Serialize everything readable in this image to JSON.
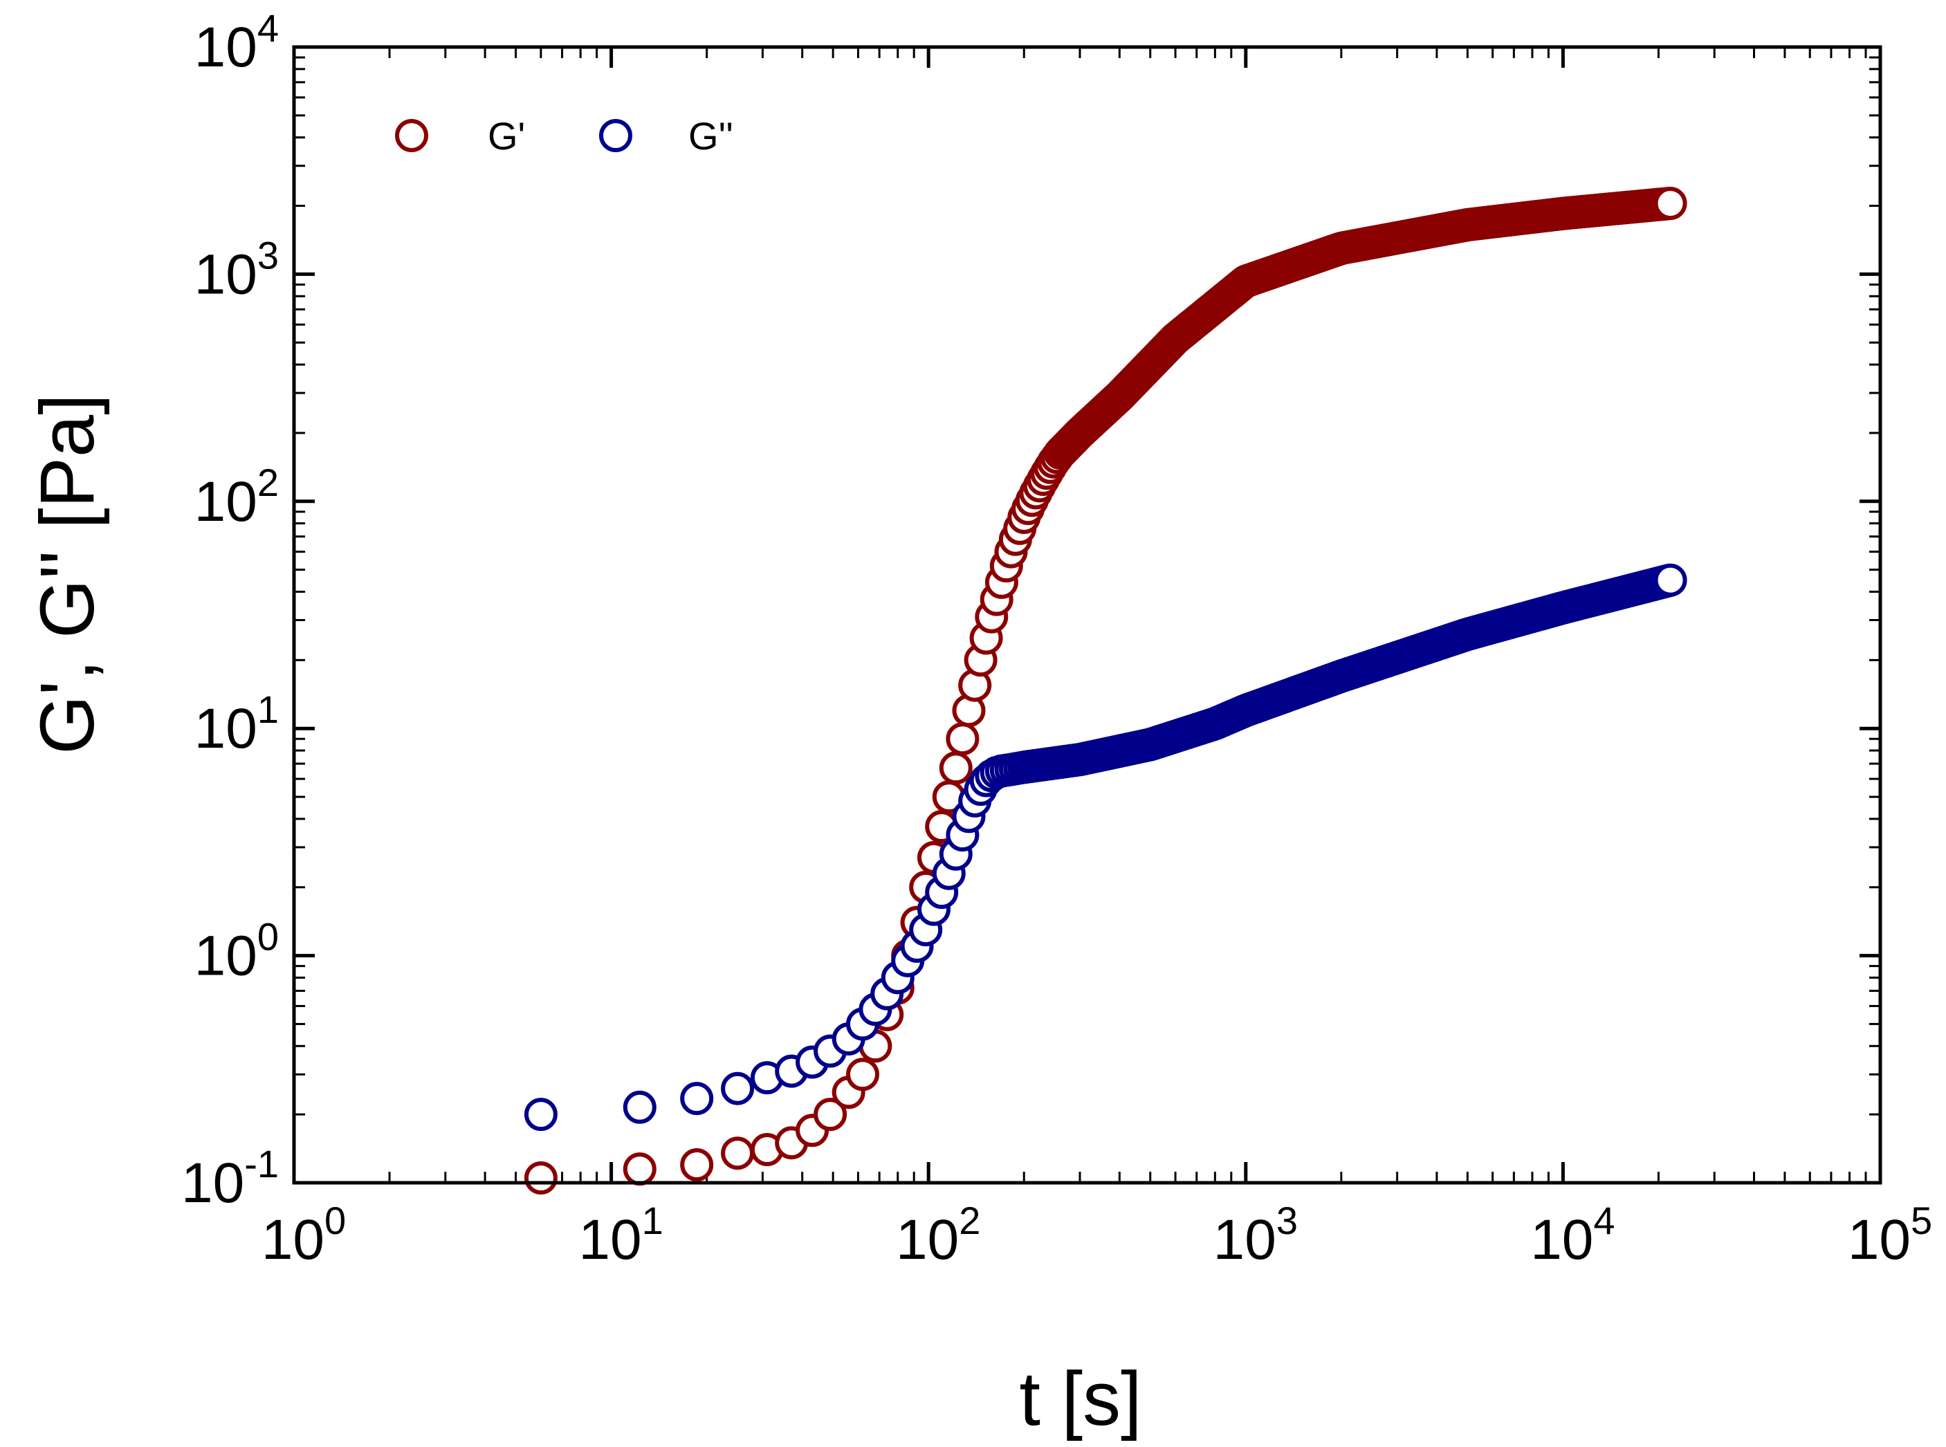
{
  "chart_data": {
    "type": "scatter",
    "title": "",
    "xlabel": "t [s]",
    "ylabel": "G', G'' [Pa]",
    "xscale": "log",
    "yscale": "log",
    "xlim": [
      1,
      100000
    ],
    "ylim": [
      0.1,
      10000
    ],
    "x_ticks": [
      {
        "base": "10",
        "exp": "0"
      },
      {
        "base": "10",
        "exp": "1"
      },
      {
        "base": "10",
        "exp": "2"
      },
      {
        "base": "10",
        "exp": "3"
      },
      {
        "base": "10",
        "exp": "4"
      },
      {
        "base": "10",
        "exp": "5"
      }
    ],
    "y_ticks": [
      {
        "base": "10",
        "exp": "-1"
      },
      {
        "base": "10",
        "exp": "0"
      },
      {
        "base": "10",
        "exp": "1"
      },
      {
        "base": "10",
        "exp": "2"
      },
      {
        "base": "10",
        "exp": "3"
      },
      {
        "base": "10",
        "exp": "4"
      }
    ],
    "grid": false,
    "legend_position": "top-left",
    "marker": "open-circle",
    "series": [
      {
        "name": "G'",
        "color": "#8B0000",
        "anchors": {
          "x": [
            6,
            12.3,
            18.6,
            25,
            31,
            37,
            43,
            49,
            56,
            62,
            68,
            74,
            80,
            86,
            92,
            98,
            104,
            110,
            116,
            122,
            128,
            134,
            140,
            146,
            152,
            158,
            164,
            170,
            176,
            182,
            188,
            194,
            200,
            206,
            212,
            218,
            224,
            230,
            236,
            242,
            248,
            254,
            260,
            300,
            400,
            600,
            1000,
            2000,
            5000,
            10000,
            21800
          ],
          "y": [
            0.105,
            0.115,
            0.12,
            0.135,
            0.14,
            0.15,
            0.17,
            0.2,
            0.25,
            0.3,
            0.4,
            0.55,
            0.72,
            1.0,
            1.4,
            2.0,
            2.7,
            3.7,
            5.0,
            6.7,
            9.0,
            12,
            15.5,
            20,
            25,
            31,
            37,
            44,
            52,
            60,
            68,
            76,
            85,
            93,
            101,
            109,
            117,
            125,
            133,
            141,
            149,
            156,
            163,
            200,
            290,
            520,
            930,
            1300,
            1650,
            1850,
            2050
          ]
        },
        "tail_start": 260,
        "tail_end": 21800,
        "tail_points": 700
      },
      {
        "name": "G''",
        "color": "#00008B",
        "anchors": {
          "x": [
            6,
            12.3,
            18.6,
            25,
            31,
            37,
            43,
            49,
            56,
            62,
            68,
            74,
            80,
            86,
            92,
            98,
            104,
            110,
            116,
            122,
            128,
            134,
            140,
            146,
            152,
            158,
            164,
            170,
            176,
            182,
            188,
            194,
            200,
            300,
            500,
            800,
            1000,
            2000,
            5000,
            10000,
            21800
          ],
          "y": [
            0.2,
            0.215,
            0.235,
            0.26,
            0.29,
            0.31,
            0.34,
            0.38,
            0.43,
            0.5,
            0.58,
            0.68,
            0.8,
            0.95,
            1.1,
            1.3,
            1.6,
            1.9,
            2.3,
            2.8,
            3.4,
            4.1,
            4.8,
            5.4,
            5.9,
            6.2,
            6.4,
            6.5,
            6.55,
            6.6,
            6.65,
            6.7,
            6.75,
            7.3,
            8.5,
            10.5,
            12,
            17,
            26,
            34,
            45
          ]
        },
        "tail_start": 200,
        "tail_end": 21800,
        "tail_points": 700
      }
    ]
  }
}
